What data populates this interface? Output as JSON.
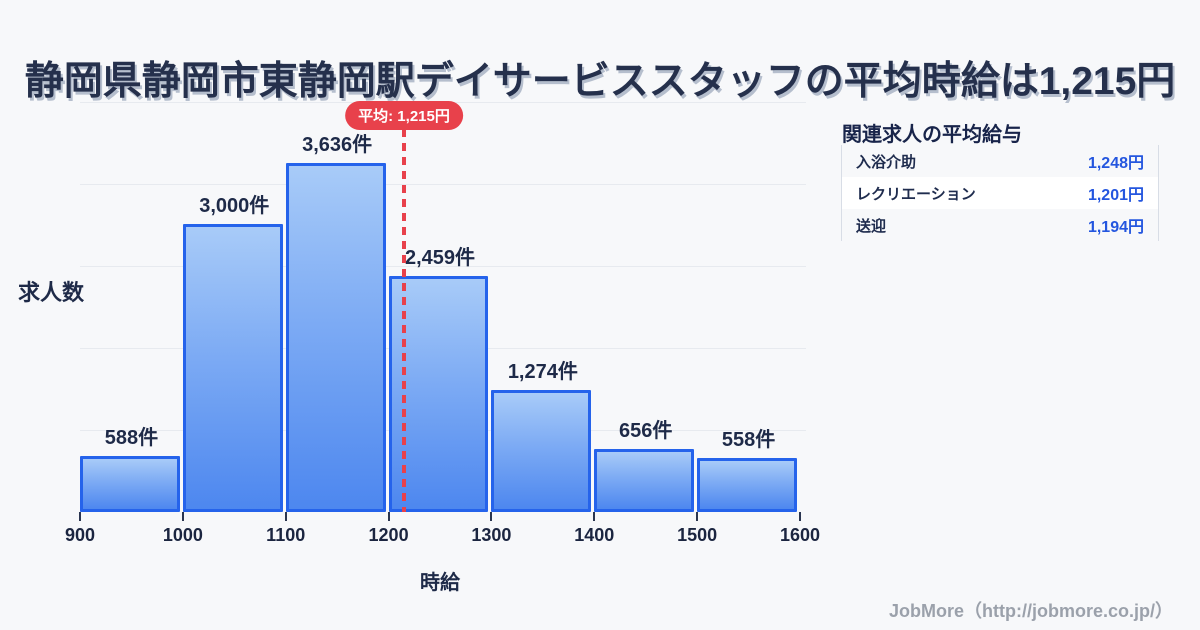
{
  "title": "静岡県静岡市東静岡駅デイサービススタッフの平均時給は1,215円",
  "chart_data": {
    "type": "bar",
    "title": "静岡県静岡市東静岡駅デイサービススタッフの平均時給は1,215円",
    "xlabel": "時給",
    "ylabel": "求人数",
    "x_ticks": [
      "900",
      "1000",
      "1100",
      "1200",
      "1300",
      "1400",
      "1500",
      "1600"
    ],
    "bins": [
      [
        900,
        1000
      ],
      [
        1000,
        1100
      ],
      [
        1100,
        1200
      ],
      [
        1200,
        1300
      ],
      [
        1300,
        1400
      ],
      [
        1400,
        1500
      ],
      [
        1500,
        1600
      ]
    ],
    "values": [
      588,
      3000,
      3636,
      2459,
      1274,
      656,
      558
    ],
    "bar_labels": [
      "588件",
      "3,000件",
      "3,636件",
      "2,459件",
      "1,274件",
      "656件",
      "558件"
    ],
    "unit": "件",
    "xlim": [
      900,
      1600
    ],
    "ylim": [
      0,
      4272
    ],
    "grid": true,
    "gridline_count": 5,
    "average_line": {
      "x": 1215,
      "label": "平均: 1,215円",
      "color": "#e8414b"
    },
    "bar_style": {
      "fill_top": "#a8cbf8",
      "fill_bottom": "#4d87ef",
      "border": "#2563eb"
    }
  },
  "panel": {
    "title": "関連求人の平均給与",
    "rows": [
      {
        "label": "入浴介助",
        "value": "1,248円"
      },
      {
        "label": "レクリエーション",
        "value": "1,201円"
      },
      {
        "label": "送迎",
        "value": "1,194円"
      }
    ],
    "value_color": "#2456df"
  },
  "footer": {
    "text": "JobMore（http://jobmore.co.jp/）"
  }
}
